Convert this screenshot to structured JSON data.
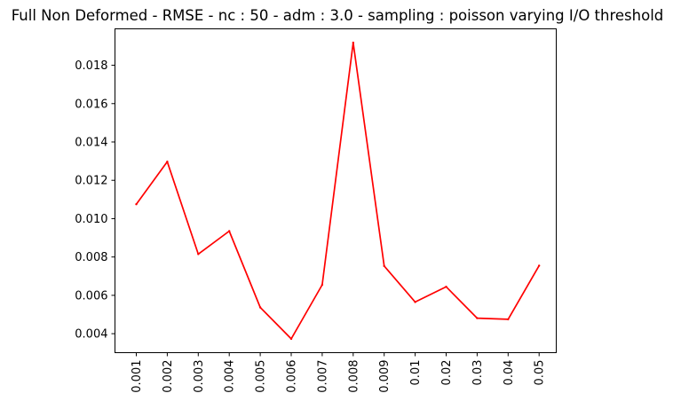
{
  "chart_data": {
    "type": "line",
    "title": "Full Non Deformed - RMSE - nc : 50 - adm : 3.0 - sampling : poisson varying I/O threshold",
    "xlabel": "",
    "ylabel": "",
    "categories": [
      "0.001",
      "0.002",
      "0.003",
      "0.004",
      "0.005",
      "0.006",
      "0.007",
      "0.008",
      "0.009",
      "0.01",
      "0.02",
      "0.03",
      "0.04",
      "0.05"
    ],
    "series": [
      {
        "color": "#ff0000",
        "values": [
          0.01075,
          0.01297,
          0.00815,
          0.00935,
          0.00537,
          0.00373,
          0.00655,
          0.01918,
          0.00753,
          0.00565,
          0.00645,
          0.00481,
          0.00475,
          0.00755
        ]
      }
    ],
    "ylim": [
      0.00301,
      0.0199
    ],
    "yticks": [
      "0.004",
      "0.006",
      "0.008",
      "0.010",
      "0.012",
      "0.014",
      "0.016",
      "0.018"
    ],
    "xtick_rotation": "vertical",
    "grid": false,
    "legend": "none"
  }
}
